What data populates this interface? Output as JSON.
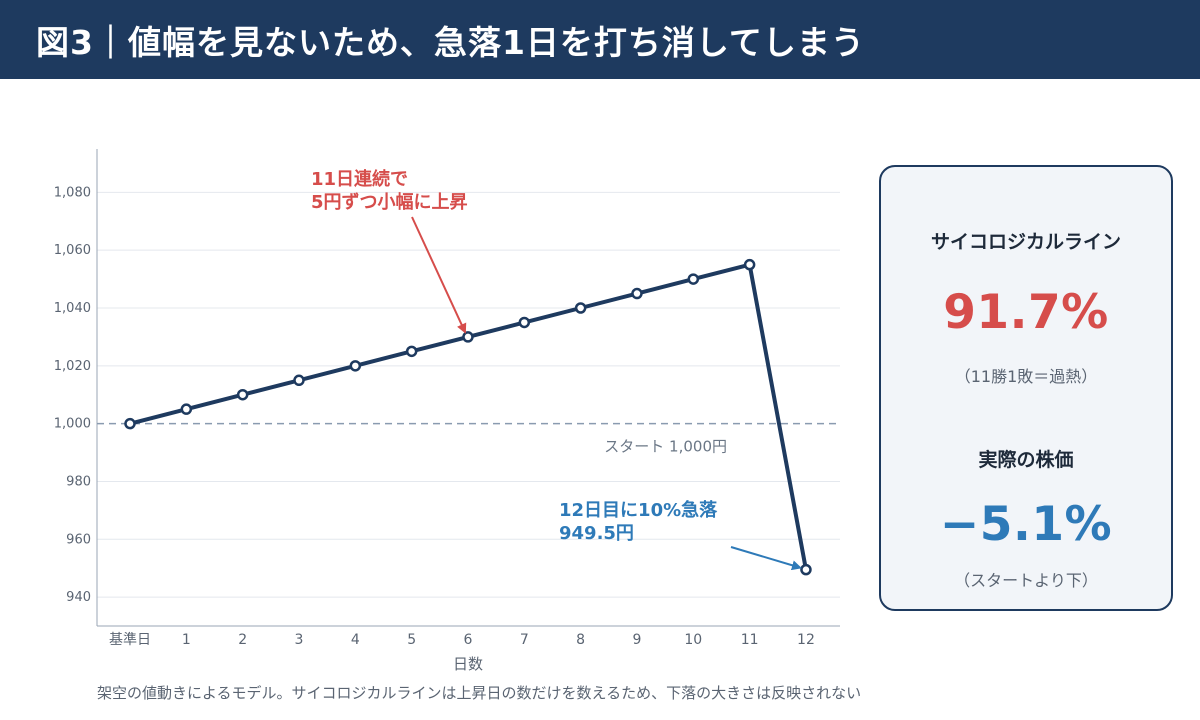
{
  "header": {
    "title": "図3｜値幅を見ないため、急落1日を打ち消してしまう"
  },
  "chart_data": {
    "type": "line",
    "xlabel": "日数",
    "ylabel": "",
    "categories": [
      "基準日",
      "1",
      "2",
      "3",
      "4",
      "5",
      "6",
      "7",
      "8",
      "9",
      "10",
      "11",
      "12"
    ],
    "values": [
      1000,
      1005,
      1010,
      1015,
      1020,
      1025,
      1030,
      1035,
      1040,
      1045,
      1050,
      1055,
      949.5
    ],
    "ylim": [
      930,
      1095
    ],
    "yticks": [
      940,
      960,
      980,
      1000,
      1020,
      1040,
      1060,
      1080
    ],
    "ytick_labels": [
      "940",
      "960",
      "980",
      "1,000",
      "1,020",
      "1,040",
      "1,060",
      "1,080"
    ],
    "grid": true,
    "reference_line": {
      "value": 1000,
      "label": "スタート 1,000円",
      "color": "#8a9bb0"
    },
    "line_color": "#1e3a5f",
    "annotations": [
      {
        "lines": [
          "11日連続で",
          "5円ずつ小幅に上昇"
        ],
        "color": "#d64d4b",
        "target_index": 6
      },
      {
        "lines": [
          "12日目に10%急落",
          "949.5円"
        ],
        "color": "#2e7ab8",
        "target_index": 12
      }
    ]
  },
  "panel": {
    "psych": {
      "label": "サイコロジカルライン",
      "value": "91.7%",
      "note": "（11勝1敗＝過熱）",
      "color": "#d64d4b"
    },
    "actual": {
      "label": "実際の株価",
      "value": "−5.1%",
      "note": "（スタートより下）",
      "color": "#2e7ab8"
    }
  },
  "footnote": "架空の値動きによるモデル。サイコロジカルラインは上昇日の数だけを数えるため、下落の大きさは反映されない"
}
